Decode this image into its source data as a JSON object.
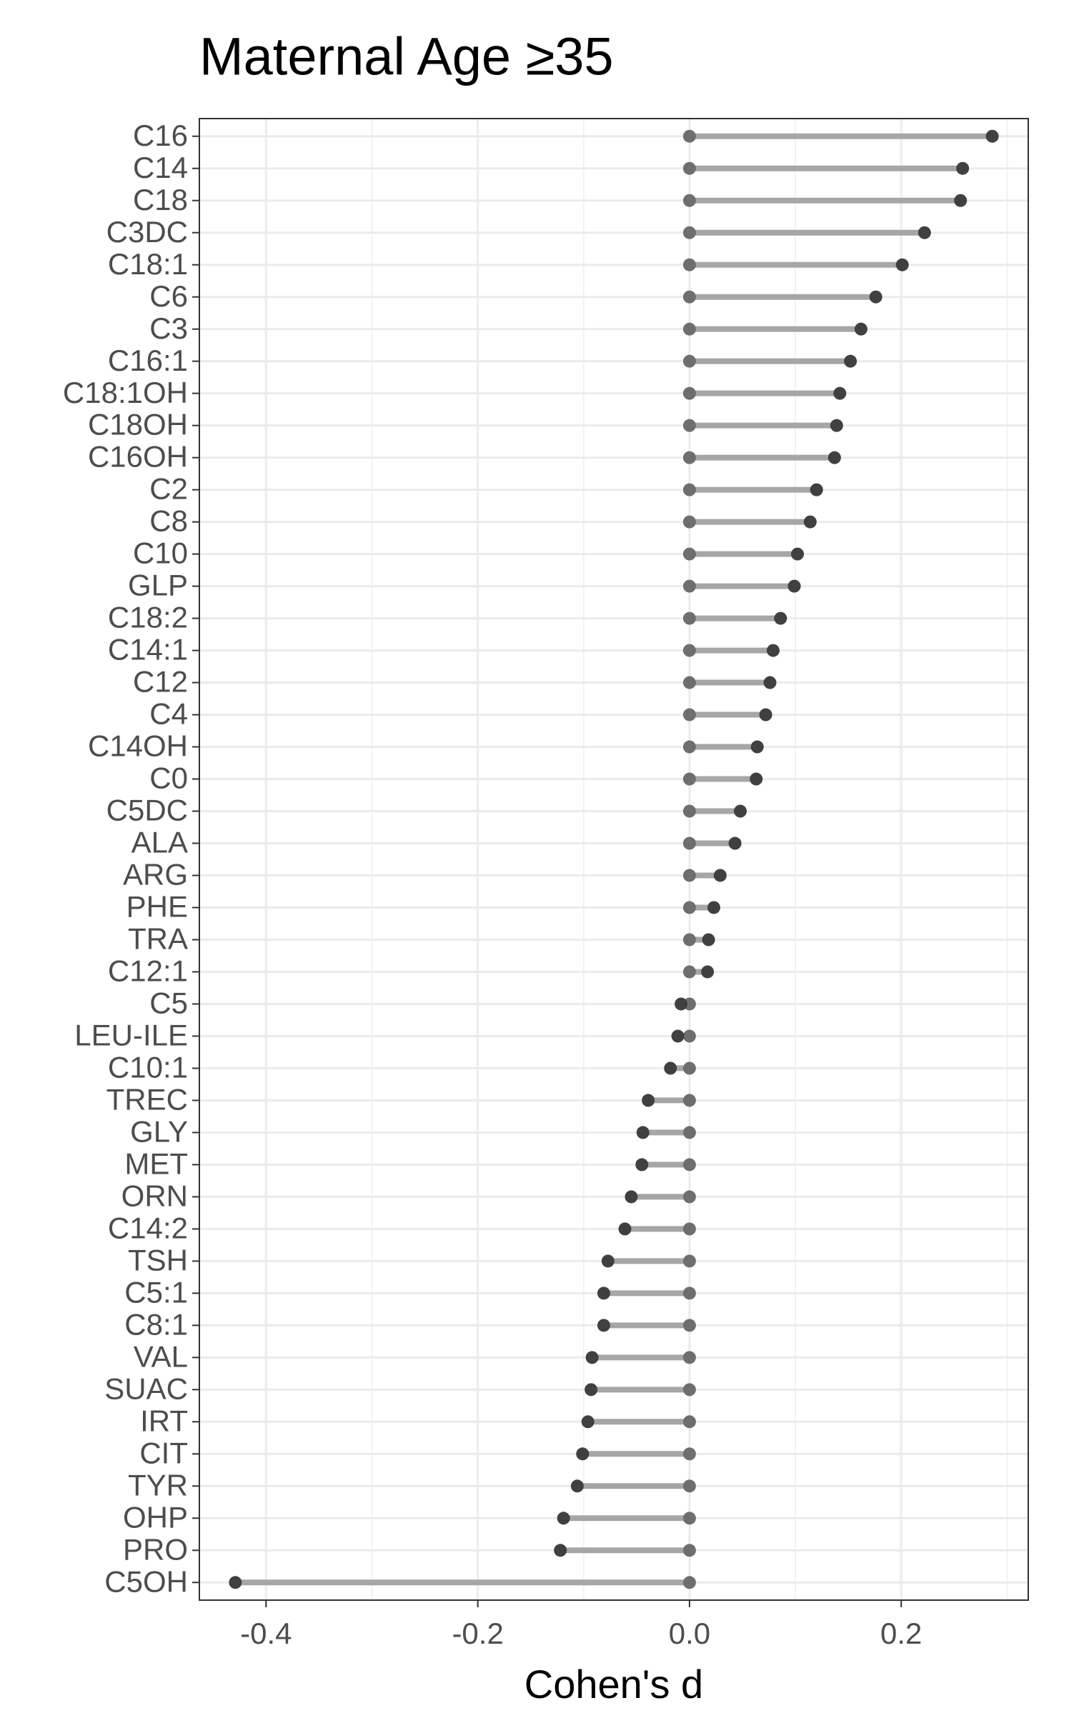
{
  "chart_data": {
    "type": "lollipop",
    "title": "Maternal Age ≥35",
    "x_label": "Cohen's d",
    "orientation": "horizontal",
    "categories": [
      "C16",
      "C14",
      "C18",
      "C3DC",
      "C18:1",
      "C6",
      "C3",
      "C16:1",
      "C18:1OH",
      "C18OH",
      "C16OH",
      "C2",
      "C8",
      "C10",
      "GLP",
      "C18:2",
      "C14:1",
      "C12",
      "C4",
      "C14OH",
      "C0",
      "C5DC",
      "ALA",
      "ARG",
      "PHE",
      "TRA",
      "C12:1",
      "C5",
      "LEU-ILE",
      "C10:1",
      "TREC",
      "GLY",
      "MET",
      "ORN",
      "C14:2",
      "TSH",
      "C5:1",
      "C8:1",
      "VAL",
      "SUAC",
      "IRT",
      "CIT",
      "TYR",
      "OHP",
      "PRO",
      "C5OH"
    ],
    "values": [
      0.286,
      0.258,
      0.256,
      0.222,
      0.201,
      0.176,
      0.162,
      0.152,
      0.142,
      0.139,
      0.137,
      0.12,
      0.114,
      0.102,
      0.099,
      0.086,
      0.079,
      0.076,
      0.072,
      0.064,
      0.063,
      0.048,
      0.043,
      0.029,
      0.023,
      0.018,
      0.017,
      -0.008,
      -0.011,
      -0.018,
      -0.039,
      -0.044,
      -0.045,
      -0.055,
      -0.061,
      -0.077,
      -0.081,
      -0.081,
      -0.092,
      -0.093,
      -0.096,
      -0.101,
      -0.106,
      -0.119,
      -0.122,
      -0.429
    ],
    "xlim": [
      -0.463,
      0.32
    ],
    "xticks": [
      -0.4,
      -0.2,
      {
        "value": 0,
        "label": "0.0"
      },
      0.2
    ],
    "grid": true,
    "segment_color": "#a6a6a6",
    "point_color": "#404040",
    "origin_color": "#6e6e6e"
  }
}
